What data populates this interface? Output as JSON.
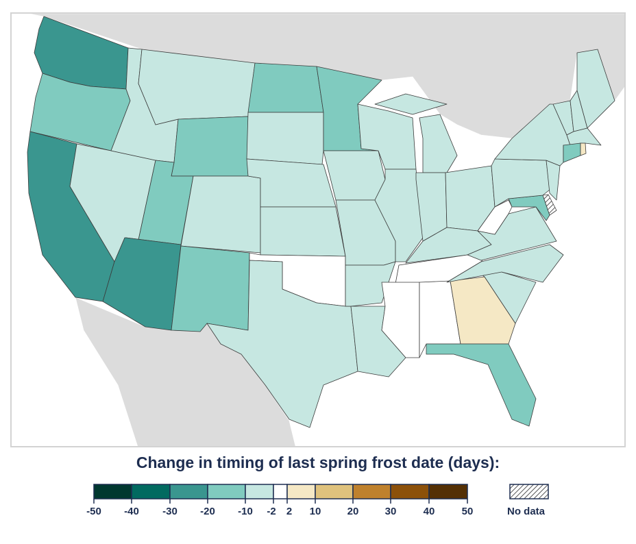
{
  "title": "Change in timing of last spring frost date (days):",
  "legend": {
    "bins": [
      {
        "range": "-50 to -40",
        "color": "#00382f"
      },
      {
        "range": "-40 to -30",
        "color": "#016a60"
      },
      {
        "range": "-30 to -20",
        "color": "#3a968f"
      },
      {
        "range": "-20 to -10",
        "color": "#80cbbf"
      },
      {
        "range": "-10 to -2",
        "color": "#c6e7e1"
      },
      {
        "range": "-2 to 2",
        "color": "#ffffff"
      },
      {
        "range": "2 to 10",
        "color": "#f5e8c5"
      },
      {
        "range": "10 to 20",
        "color": "#dfc27d"
      },
      {
        "range": "20 to 30",
        "color": "#bf812d"
      },
      {
        "range": "30 to 40",
        "color": "#8c510a"
      },
      {
        "range": "40 to 50",
        "color": "#543005"
      }
    ],
    "ticks": [
      "-50",
      "-40",
      "-30",
      "-20",
      "-10",
      "-2",
      "2",
      "10",
      "20",
      "30",
      "40",
      "50"
    ],
    "no_data_label": "No data"
  },
  "states": {
    "WA": "-30 to -20",
    "CA": "-30 to -20",
    "AZ": "-30 to -20",
    "OR": "-20 to -10",
    "WY": "-20 to -10",
    "UT": "-20 to -10",
    "NM": "-20 to -10",
    "ND": "-20 to -10",
    "MN": "-20 to -10",
    "FL": "-20 to -10",
    "CT": "-20 to -10",
    "MD": "-20 to -10",
    "ID": "-10 to -2",
    "MT": "-10 to -2",
    "NV": "-10 to -2",
    "CO": "-10 to -2",
    "SD": "-10 to -2",
    "NE": "-10 to -2",
    "KS": "-10 to -2",
    "TX": "-10 to -2",
    "IA": "-10 to -2",
    "MO": "-10 to -2",
    "AR": "-10 to -2",
    "LA": "-10 to -2",
    "WI": "-10 to -2",
    "IL": "-10 to -2",
    "MI": "-10 to -2",
    "IN": "-10 to -2",
    "OH": "-10 to -2",
    "KY": "-10 to -2",
    "PA": "-10 to -2",
    "NY": "-10 to -2",
    "VT": "-10 to -2",
    "NH": "-10 to -2",
    "ME": "-10 to -2",
    "MA": "-10 to -2",
    "NJ": "-10 to -2",
    "VA": "-10 to -2",
    "NC": "-10 to -2",
    "SC": "-10 to -2",
    "OK": "-2 to 2",
    "TN": "-2 to 2",
    "MS": "-2 to 2",
    "AL": "-2 to 2",
    "WV": "-2 to 2",
    "GA": "2 to 10",
    "RI": "2 to 10",
    "DE": "No data"
  },
  "colors": {
    "land_outside": "#dcdcdc",
    "border": "#3a3a3a",
    "text": "#1d2d50"
  }
}
